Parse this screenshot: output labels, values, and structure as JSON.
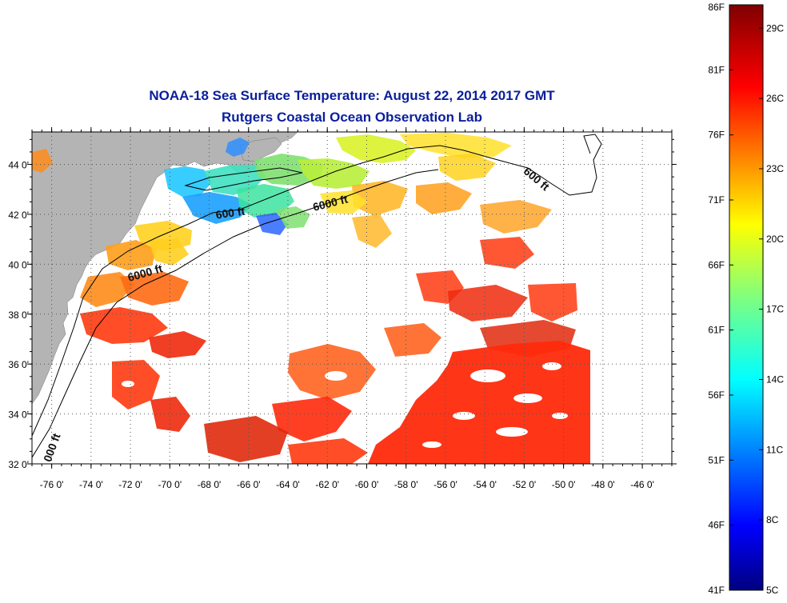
{
  "title": {
    "line1": "NOAA-18 Sea Surface Temperature:  August 22, 2014 2017 GMT",
    "line2": "Rutgers Coastal Ocean Observation Lab"
  },
  "map": {
    "lon_range": [
      -77,
      -44.5
    ],
    "lat_range": [
      32,
      45.3
    ],
    "lat_ticks": [
      {
        "value": 44,
        "label": "44 0'"
      },
      {
        "value": 42,
        "label": "42 0'"
      },
      {
        "value": 40,
        "label": "40 0'"
      },
      {
        "value": 38,
        "label": "38 0'"
      },
      {
        "value": 36,
        "label": "36 0'"
      },
      {
        "value": 34,
        "label": "34 0'"
      },
      {
        "value": 32,
        "label": "32 0'"
      }
    ],
    "lon_ticks": [
      {
        "value": -76,
        "label": "-76 0'"
      },
      {
        "value": -74,
        "label": "-74 0'"
      },
      {
        "value": -72,
        "label": "-72 0'"
      },
      {
        "value": -70,
        "label": "-70 0'"
      },
      {
        "value": -68,
        "label": "-68 0'"
      },
      {
        "value": -66,
        "label": "-66 0'"
      },
      {
        "value": -64,
        "label": "-64 0'"
      },
      {
        "value": -62,
        "label": "-62 0'"
      },
      {
        "value": -60,
        "label": "-60 0'"
      },
      {
        "value": -58,
        "label": "-58 0'"
      },
      {
        "value": -56,
        "label": "-56 0'"
      },
      {
        "value": -54,
        "label": "-54 0'"
      },
      {
        "value": -52,
        "label": "-52 0'"
      },
      {
        "value": -50,
        "label": "-50 0'"
      },
      {
        "value": -48,
        "label": "-48 0'"
      },
      {
        "value": -46,
        "label": "-46 0'"
      }
    ],
    "contour_labels": [
      {
        "text": "600 ft",
        "lon": -66.9,
        "lat": 41.9,
        "angle": -8
      },
      {
        "text": "6000 ft",
        "lon": -61.8,
        "lat": 42.3,
        "angle": -14
      },
      {
        "text": "600 ft",
        "lon": -51.5,
        "lat": 43.3,
        "angle": 40
      },
      {
        "text": "6000 ft",
        "lon": -71.2,
        "lat": 39.5,
        "angle": -16
      },
      {
        "text": "000 ft",
        "lon": -75.8,
        "lat": 32.6,
        "angle": -70
      }
    ],
    "colors": {
      "land": "#b4b4b4",
      "ocean_nodata": "#ffffff",
      "grid": "#555555"
    }
  },
  "colorbar": {
    "range_f": [
      41,
      86
    ],
    "fahrenheit_labels": [
      "86F",
      "81F",
      "76F",
      "71F",
      "66F",
      "61F",
      "56F",
      "51F",
      "46F",
      "41F"
    ],
    "celsius_labels": [
      {
        "value": 29,
        "label": "29C"
      },
      {
        "value": 26,
        "label": "26C"
      },
      {
        "value": 23,
        "label": "23C"
      },
      {
        "value": 20,
        "label": "20C"
      },
      {
        "value": 17,
        "label": "17C"
      },
      {
        "value": 14,
        "label": "14C"
      },
      {
        "value": 11,
        "label": "11C"
      },
      {
        "value": 8,
        "label": "8C"
      },
      {
        "value": 5,
        "label": "5C"
      }
    ]
  }
}
